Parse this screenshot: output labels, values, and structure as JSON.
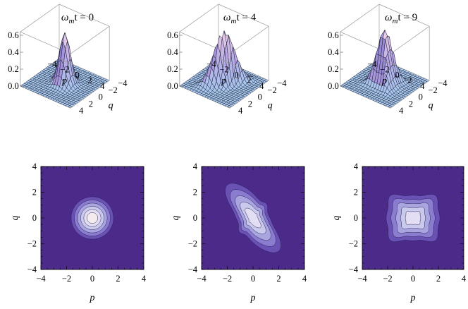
{
  "figure": {
    "title_symbol": "ω",
    "title_subscript": "m",
    "title_suffix": "t = "
  },
  "colors": {
    "background": "#ffffff",
    "density_outer": "#4b2a8a",
    "density_levels": [
      "#4b2a8a",
      "#6a52b5",
      "#8a7cce",
      "#a9a5de",
      "#c9c9ec",
      "#e3def3",
      "#f3ebec"
    ],
    "contour_line": "#2b1f5c",
    "surface_low": "#a8c8ee",
    "surface_mid": "#b9a8e6",
    "surface_high": "#f4d6e6",
    "mesh_line": "#141a2c"
  },
  "chart_data": [
    {
      "type": "surface3d",
      "title_value": "0",
      "xlabel": "p",
      "ylabel": "q",
      "xticks": [
        "−4",
        "−2",
        "0",
        "2",
        "4"
      ],
      "yticks": [
        "−4",
        "−2",
        "0",
        "2",
        "4"
      ],
      "zticks": [
        "0.0",
        "0.2",
        "0.4",
        "0.6"
      ],
      "xlim": [
        -4,
        4
      ],
      "ylim": [
        -4,
        4
      ],
      "zlim": [
        0,
        0.64
      ],
      "peak": 0.6,
      "sigma_major": 0.7,
      "sigma_minor": 0.7,
      "angle_deg": 0,
      "arm_strength": 0.0
    },
    {
      "type": "surface3d",
      "title_value": "4",
      "xlabel": "p",
      "ylabel": "q",
      "xticks": [
        "−4",
        "−2",
        "0",
        "2",
        "4"
      ],
      "yticks": [
        "−4",
        "−2",
        "0",
        "2",
        "4"
      ],
      "zticks": [
        "0.0",
        "0.2",
        "0.4",
        "0.6"
      ],
      "xlim": [
        -4,
        4
      ],
      "ylim": [
        -4,
        4
      ],
      "zlim": [
        0,
        0.64
      ],
      "peak": 0.62,
      "sigma_major": 1.2,
      "sigma_minor": 0.5,
      "angle_deg": -60,
      "arm_strength": 0.25
    },
    {
      "type": "surface3d",
      "title_value": "9",
      "xlabel": "p",
      "ylabel": "q",
      "xticks": [
        "−4",
        "−2",
        "0",
        "2",
        "4"
      ],
      "yticks": [
        "−4",
        "−2",
        "0",
        "2",
        "4"
      ],
      "zticks": [
        "0.0",
        "0.2",
        "0.4",
        "0.6"
      ],
      "xlim": [
        -4,
        4
      ],
      "ylim": [
        -4,
        4
      ],
      "zlim": [
        0,
        0.64
      ],
      "peak": 0.63,
      "sigma_major": 0.9,
      "sigma_minor": 0.75,
      "angle_deg": 0,
      "arm_strength": 0.3
    },
    {
      "type": "contour",
      "xlabel": "p",
      "ylabel": "q",
      "xticks": [
        "−4",
        "−2",
        "0",
        "2",
        "4"
      ],
      "yticks": [
        "−4",
        "−2",
        "0",
        "2",
        "4"
      ],
      "xlim": [
        -4,
        4
      ],
      "ylim": [
        -4,
        4
      ],
      "levels": 6,
      "sigma_major": 0.7,
      "sigma_minor": 0.7,
      "angle_deg": 0,
      "arm_strength": 0.0
    },
    {
      "type": "contour",
      "xlabel": "p",
      "ylabel": "q",
      "xticks": [
        "−4",
        "−2",
        "0",
        "2",
        "4"
      ],
      "yticks": [
        "−4",
        "−2",
        "0",
        "2",
        "4"
      ],
      "xlim": [
        -4,
        4
      ],
      "ylim": [
        -4,
        4
      ],
      "levels": 5,
      "sigma_major": 1.2,
      "sigma_minor": 0.5,
      "angle_deg": -60,
      "arm_strength": 0.25
    },
    {
      "type": "contour",
      "xlabel": "p",
      "ylabel": "q",
      "xticks": [
        "−4",
        "−2",
        "0",
        "2",
        "4"
      ],
      "yticks": [
        "−4",
        "−2",
        "0",
        "2",
        "4"
      ],
      "xlim": [
        -4,
        4
      ],
      "ylim": [
        -4,
        4
      ],
      "levels": 5,
      "sigma_major": 0.9,
      "sigma_minor": 0.75,
      "angle_deg": 0,
      "arm_strength": 0.3
    }
  ]
}
